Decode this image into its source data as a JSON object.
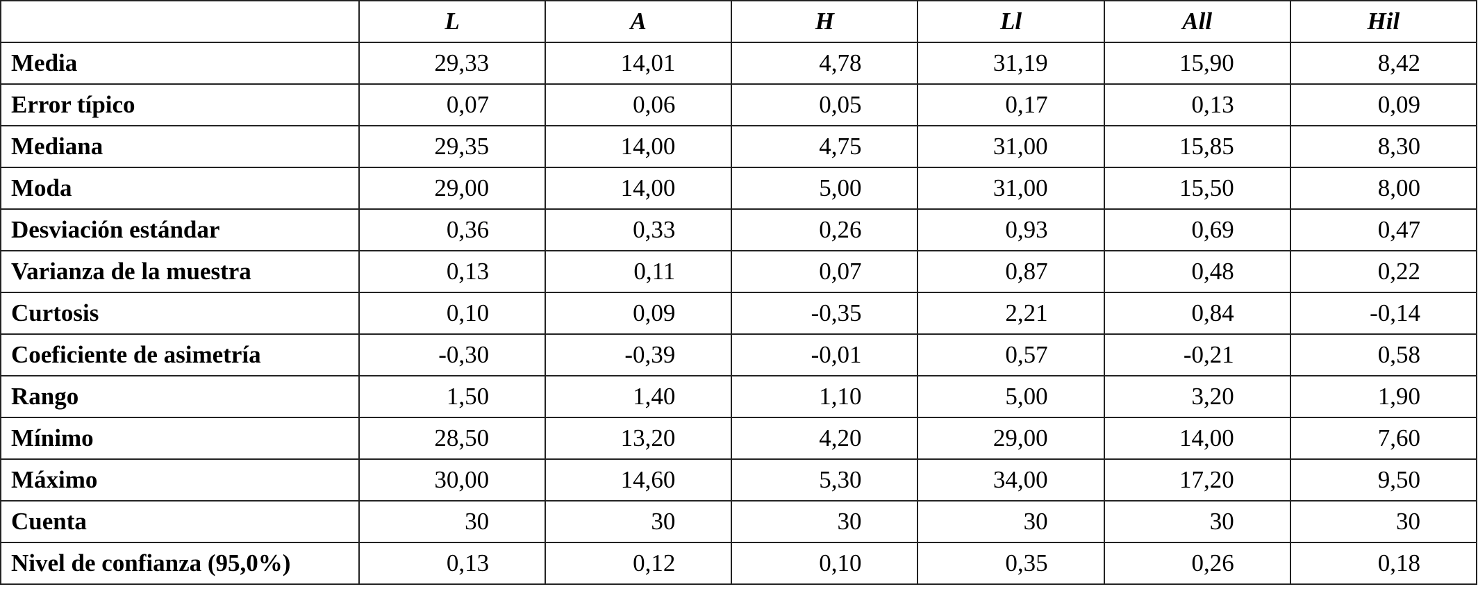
{
  "table": {
    "columns": [
      "L",
      "A",
      "H",
      "Ll",
      "All",
      "Hil"
    ],
    "rows": [
      {
        "label": "Media",
        "cells": [
          "29,33",
          "14,01",
          "4,78",
          "31,19",
          "15,90",
          "8,42"
        ]
      },
      {
        "label": "Error típico",
        "cells": [
          "0,07",
          "0,06",
          "0,05",
          "0,17",
          "0,13",
          "0,09"
        ]
      },
      {
        "label": "Mediana",
        "cells": [
          "29,35",
          "14,00",
          "4,75",
          "31,00",
          "15,85",
          "8,30"
        ]
      },
      {
        "label": "Moda",
        "cells": [
          "29,00",
          "14,00",
          "5,00",
          "31,00",
          "15,50",
          "8,00"
        ]
      },
      {
        "label": "Desviación estándar",
        "cells": [
          "0,36",
          "0,33",
          "0,26",
          "0,93",
          "0,69",
          "0,47"
        ]
      },
      {
        "label": "Varianza de la muestra",
        "cells": [
          "0,13",
          "0,11",
          "0,07",
          "0,87",
          "0,48",
          "0,22"
        ]
      },
      {
        "label": "Curtosis",
        "cells": [
          "0,10",
          "0,09",
          "-0,35",
          "2,21",
          "0,84",
          "-0,14"
        ]
      },
      {
        "label": "Coeficiente de asimetría",
        "cells": [
          "-0,30",
          "-0,39",
          "-0,01",
          "0,57",
          "-0,21",
          "0,58"
        ]
      },
      {
        "label": "Rango",
        "cells": [
          "1,50",
          "1,40",
          "1,10",
          "5,00",
          "3,20",
          "1,90"
        ]
      },
      {
        "label": "Mínimo",
        "cells": [
          "28,50",
          "13,20",
          "4,20",
          "29,00",
          "14,00",
          "7,60"
        ]
      },
      {
        "label": "Máximo",
        "cells": [
          "30,00",
          "14,60",
          "5,30",
          "34,00",
          "17,20",
          "9,50"
        ]
      },
      {
        "label": "Cuenta",
        "cells": [
          "30",
          "30",
          "30",
          "30",
          "30",
          "30"
        ]
      },
      {
        "label": "Nivel de confianza (95,0%)",
        "cells": [
          "0,13",
          "0,12",
          "0,10",
          "0,35",
          "0,26",
          "0,18"
        ]
      }
    ]
  }
}
